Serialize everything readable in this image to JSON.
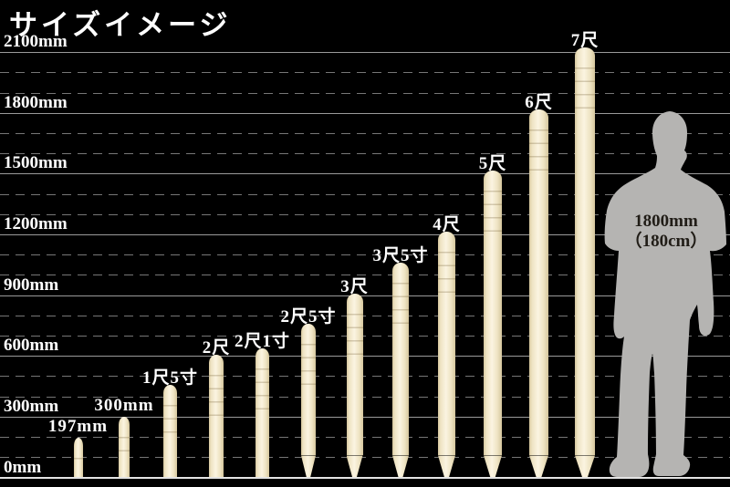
{
  "title": "サイズイメージ",
  "person": {
    "label_line1": "1800mm",
    "label_line2": "（180cm）"
  },
  "colors": {
    "background": "#000000",
    "stake_light": "#fbf4e1",
    "stake_mid": "#eee3c2",
    "stake_dark": "#d5c69d",
    "grid_solid": "#9a9a9a",
    "grid_dashed": "#767676",
    "grid_baseline": "#e3e3e3",
    "person": "#b5b4b2",
    "person_label": "#211d17",
    "label_text": "#ffffff"
  },
  "chart_data": {
    "type": "bar",
    "title": "サイズイメージ",
    "xlabel": "",
    "ylabel": "",
    "unit": "mm",
    "ylim": [
      0,
      2100
    ],
    "grid": "solid line every 300mm, dashed line every 100mm",
    "legend_position": "none",
    "axis": {
      "min": 0,
      "max": 2100,
      "solid_step": 300,
      "dashed_step": 100,
      "tick_labels": [
        "0mm",
        "300mm",
        "600mm",
        "900mm",
        "1200mm",
        "1500mm",
        "1800mm",
        "2100mm"
      ]
    },
    "categories": [
      "197mm",
      "300mm",
      "1尺5寸",
      "2尺",
      "2尺1寸",
      "2尺5寸",
      "3尺",
      "3尺5寸",
      "4尺",
      "5尺",
      "6尺",
      "7尺"
    ],
    "values": [
      197,
      300,
      455,
      606,
      636,
      758,
      909,
      1061,
      1212,
      1515,
      1818,
      2121
    ],
    "pointed_bottom": [
      false,
      false,
      false,
      false,
      false,
      true,
      true,
      true,
      true,
      true,
      true,
      true
    ],
    "reference_figure": {
      "label_line1": "1800mm",
      "label_line2": "（180cm）",
      "height_mm": 1800
    }
  }
}
